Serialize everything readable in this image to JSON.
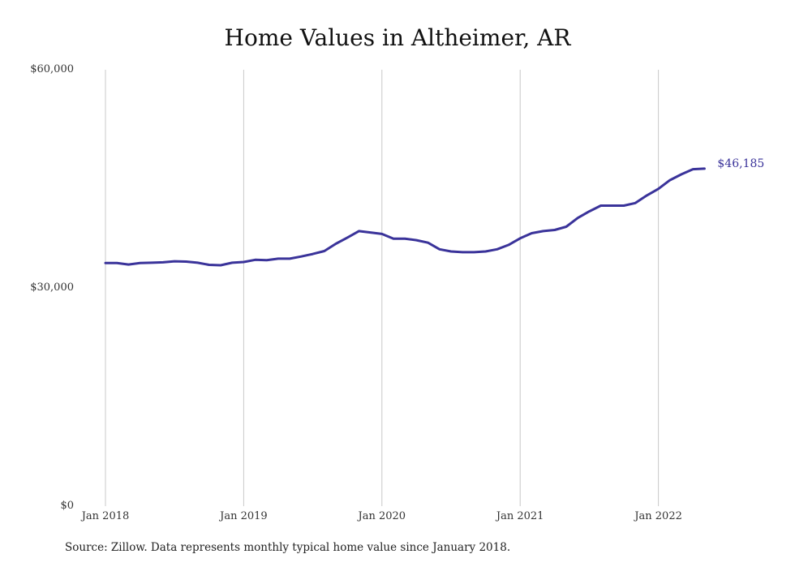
{
  "chart_data": {
    "type": "line",
    "title": "Home Values in Altheimer, AR",
    "xlabel": "",
    "ylabel": "",
    "ylim": [
      0,
      60000
    ],
    "y_ticks": [
      {
        "value": 0,
        "label": "$0"
      },
      {
        "value": 30000,
        "label": "$30,000"
      },
      {
        "value": 60000,
        "label": "$60,000"
      }
    ],
    "x_ticks": [
      {
        "index": 0,
        "label": "Jan 2018"
      },
      {
        "index": 12,
        "label": "Jan 2019"
      },
      {
        "index": 24,
        "label": "Jan 2020"
      },
      {
        "index": 36,
        "label": "Jan 2021"
      },
      {
        "index": 48,
        "label": "Jan 2022"
      }
    ],
    "grid": {
      "vertical": true,
      "horizontal": false
    },
    "series": [
      {
        "color": "#3a339a",
        "end_label": "$46,185",
        "start": "Jan 2018",
        "frequency": "monthly",
        "values": [
          33200,
          33200,
          33000,
          33200,
          33250,
          33300,
          33450,
          33400,
          33250,
          32950,
          32900,
          33250,
          33350,
          33650,
          33600,
          33800,
          33800,
          34100,
          34450,
          34850,
          35850,
          36700,
          37600,
          37400,
          37200,
          36550,
          36550,
          36350,
          36000,
          35100,
          34800,
          34700,
          34700,
          34800,
          35100,
          35700,
          36600,
          37300,
          37600,
          37750,
          38200,
          39400,
          40300,
          41100,
          41100,
          41100,
          41450,
          42500,
          43400,
          44600,
          45400,
          46100,
          46185
        ]
      }
    ]
  },
  "source_note": "Source: Zillow. Data represents monthly typical home value since January 2018."
}
